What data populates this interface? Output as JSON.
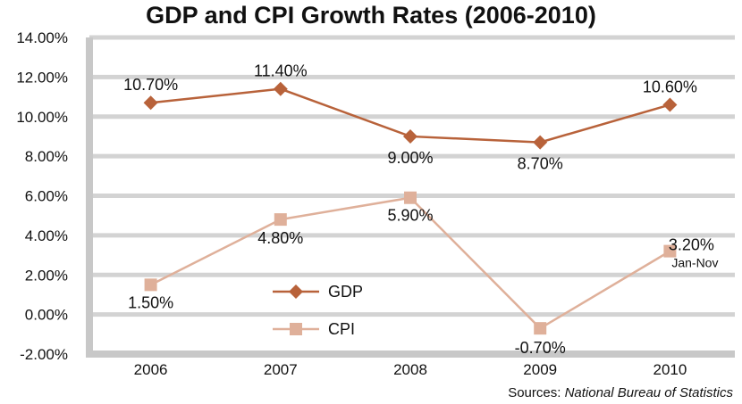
{
  "chart_data": {
    "type": "line",
    "title": "GDP and CPI Growth Rates (2006-2010)",
    "categories": [
      "2006",
      "2007",
      "2008",
      "2009",
      "2010"
    ],
    "ylim": [
      -2,
      14
    ],
    "yticks": [
      -2,
      0,
      2,
      4,
      6,
      8,
      10,
      12,
      14
    ],
    "ytick_labels": [
      "-2.00%",
      "0.00%",
      "2.00%",
      "4.00%",
      "6.00%",
      "8.00%",
      "10.00%",
      "12.00%",
      "14.00%"
    ],
    "grid": true,
    "legend_position": "lower-center",
    "series": [
      {
        "name": "GDP",
        "color": "#b8623a",
        "marker": "diamond",
        "values": [
          10.7,
          11.4,
          9.0,
          8.7,
          10.6
        ],
        "labels": [
          "10.70%",
          "11.40%",
          "9.00%",
          "8.70%",
          "10.60%"
        ]
      },
      {
        "name": "CPI",
        "color": "#dfb09a",
        "marker": "square",
        "values": [
          1.5,
          4.8,
          5.9,
          -0.7,
          3.2
        ],
        "labels": [
          "1.50%",
          "4.80%",
          "5.90%",
          "-0.70%",
          "3.20%"
        ]
      }
    ],
    "annotation": "Jan-Nov"
  },
  "source": {
    "prefix": "Sources: ",
    "name": "National Bureau of Statistics"
  }
}
